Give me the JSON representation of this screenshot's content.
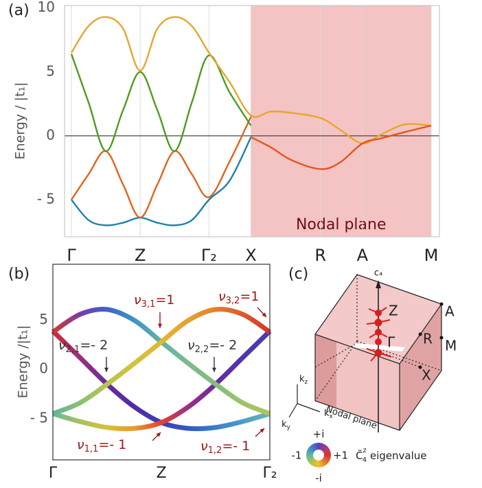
{
  "chart_data": [
    {
      "type": "line",
      "panel_label": "(a)",
      "ylabel": "Energy / |t₁|",
      "x": [
        0,
        0.25,
        0.5,
        0.75,
        1,
        1.25,
        1.5,
        1.75,
        2,
        2.3,
        2.61,
        2.9,
        3.2,
        3.62,
        3.9,
        4.23,
        4.5,
        4.85,
        5.23
      ],
      "xlim": [
        -0.1,
        5.35
      ],
      "ylim": [
        -7.9,
        10.2
      ],
      "xticks": [
        {
          "value": 0,
          "label": "Γ"
        },
        {
          "value": 1,
          "label": "Z"
        },
        {
          "value": 2,
          "label": "Γ₂"
        },
        {
          "value": 2.61,
          "label": "X"
        },
        {
          "value": 3.62,
          "label": "R"
        },
        {
          "value": 4.23,
          "label": "A"
        },
        {
          "value": 5.23,
          "label": "M"
        }
      ],
      "yticks": [
        {
          "value": -5,
          "label": "- 5"
        },
        0,
        5,
        10
      ],
      "grid": true,
      "zero_line": 0,
      "frame": "#c8c8c8",
      "stroke_width": 2.4,
      "shaded": {
        "xlim": [
          2.61,
          5.23
        ],
        "color": "#f4c3c3",
        "label": "Nodal plane"
      },
      "series": [
        {
          "color": "#1d7fae",
          "values": [
            -5.0,
            -6.6,
            -7.0,
            -6.8,
            -6.4,
            -6.8,
            -7.0,
            -6.6,
            -5.0,
            -3.5,
            -0.1,
            null,
            null,
            null,
            null,
            null,
            null,
            null,
            null
          ]
        },
        {
          "color": "#e2631b",
          "values": [
            -5.0,
            -3.0,
            -1.2,
            -3.8,
            -6.4,
            -3.8,
            -1.2,
            -3.0,
            -4.8,
            -2.0,
            1.5,
            null,
            null,
            null,
            null,
            null,
            null,
            null,
            null
          ]
        },
        {
          "color": "#4f9a1e",
          "values": [
            6.4,
            2.6,
            -1.2,
            2.0,
            5.0,
            2.0,
            -1.2,
            2.6,
            6.3,
            3.4,
            0.8,
            null,
            null,
            null,
            null,
            null,
            null,
            null,
            null
          ]
        },
        {
          "color": "#e8a52b",
          "values": [
            6.5,
            8.6,
            9.3,
            8.4,
            5.1,
            8.4,
            9.3,
            8.6,
            6.5,
            4.2,
            1.6,
            1.9,
            1.8,
            1.4,
            0.5,
            -0.6,
            0.1,
            0.9,
            0.8
          ]
        },
        {
          "color": "#e2561b",
          "values": [
            null,
            null,
            null,
            null,
            null,
            null,
            null,
            null,
            null,
            null,
            -0.1,
            -0.9,
            -1.9,
            -2.6,
            -2.1,
            -0.6,
            -0.2,
            0.3,
            0.8
          ]
        }
      ]
    },
    {
      "type": "line",
      "panel_label": "(b)",
      "ylabel": "Energy /|t₁|",
      "x": [
        0,
        0.25,
        0.5,
        0.75,
        1,
        1.25,
        1.5,
        1.75,
        2
      ],
      "xlim": [
        0,
        2
      ],
      "ylim": [
        -9.2,
        10.7
      ],
      "xticks": [
        {
          "value": 0,
          "label": "Γ"
        },
        {
          "value": 1,
          "label": "Z"
        },
        {
          "value": 2,
          "label": "Γ₂"
        }
      ],
      "yticks": [
        {
          "value": -5,
          "label": "- 5"
        },
        0,
        5
      ],
      "grid": false,
      "frame": "#333333",
      "stroke_width": 7,
      "series": [
        {
          "colors": [
            "#cf2c3a",
            "#9b2e7e",
            "#6a2c9c",
            "#4f2ca8",
            "#3b3fb8",
            "#3658c4",
            "#3d7dcc",
            "#4b9ec8",
            "#63b9b0"
          ],
          "values": [
            3.9,
            1.2,
            -1.5,
            -3.8,
            -5.4,
            -6.0,
            -5.9,
            -5.3,
            -4.5
          ]
        },
        {
          "colors": [
            "#6cb89c",
            "#a6c25c",
            "#d8c03a",
            "#e59a2e",
            "#e2452a",
            "#9a2e86",
            "#6a2ca0",
            "#5034a8",
            "#4a3cb0"
          ],
          "values": [
            -4.5,
            -5.3,
            -5.9,
            -6.0,
            -5.4,
            -3.8,
            -1.5,
            1.2,
            3.9
          ]
        },
        {
          "colors": [
            "#d6392c",
            "#7a3aa8",
            "#3f63c8",
            "#3f93c4",
            "#5fb3a8",
            "#7dba8a",
            "#86bd7a",
            "#9cc26a",
            "#b3c45a"
          ],
          "values": [
            3.8,
            5.6,
            6.1,
            5.0,
            2.8,
            0.6,
            -1.5,
            -3.4,
            -4.5
          ]
        },
        {
          "colors": [
            "#63b49a",
            "#8cbf74",
            "#b6c44e",
            "#d3c23c",
            "#e0b834",
            "#e6a02e",
            "#e3802c",
            "#dc5a2c",
            "#d4362c"
          ],
          "values": [
            -4.5,
            -3.4,
            -1.5,
            0.6,
            2.8,
            5.0,
            6.1,
            5.6,
            3.8
          ]
        }
      ],
      "annotations": [
        {
          "symbol": "ν",
          "sub": "3,1",
          "text": "=1",
          "color": "#a31515"
        },
        {
          "symbol": "ν",
          "sub": "3,2",
          "text": "=1",
          "color": "#a31515"
        },
        {
          "symbol": "ν",
          "sub": "2,1",
          "text": "=- 2",
          "color": "#333333"
        },
        {
          "symbol": "ν",
          "sub": "2,2",
          "text": "=- 2",
          "color": "#333333"
        },
        {
          "symbol": "ν",
          "sub": "1,1",
          "text": "=- 1",
          "color": "#a31515"
        },
        {
          "symbol": "ν",
          "sub": "1,2",
          "text": "=- 1",
          "color": "#a31515"
        }
      ]
    }
  ],
  "diagram": {
    "panel_label": "(c)",
    "axis_label": "c₄",
    "points": [
      "Z",
      "Γ",
      "A",
      "R",
      "M",
      "X"
    ],
    "axes": [
      {
        "base": "k",
        "sub": "z"
      },
      {
        "base": "k",
        "sub": "x"
      },
      {
        "base": "k",
        "sub": "y"
      }
    ],
    "plane_label": "Nodal plane",
    "legend": {
      "top": "+i",
      "left": "-1",
      "right": "+1",
      "bottom": "-i",
      "base": "C̃",
      "sup": "z",
      "sub": "4",
      "caption": " eigenvalue"
    }
  }
}
